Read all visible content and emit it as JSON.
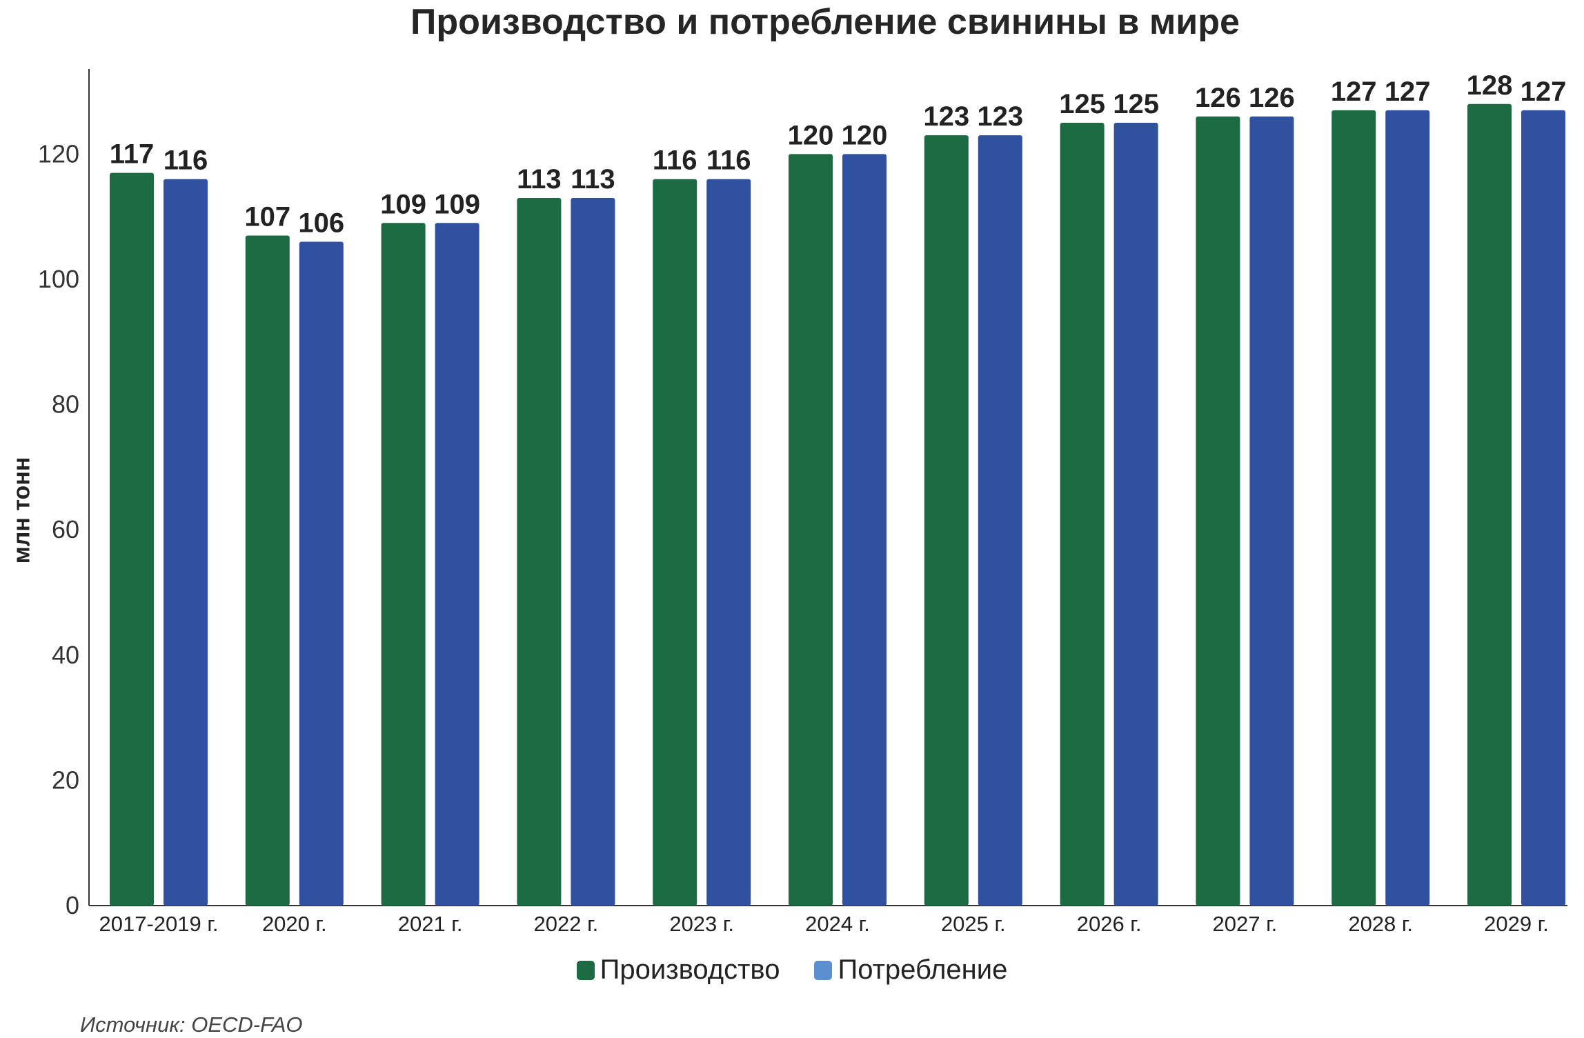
{
  "chart_data": {
    "type": "bar",
    "title": "Производство и потребление свинины в мире",
    "ylabel": "млн тонн",
    "xlabel": "",
    "ylim": [
      0,
      130
    ],
    "yticks": [
      0,
      20,
      40,
      60,
      80,
      100,
      120
    ],
    "grid": false,
    "legend_position": "bottom",
    "categories": [
      "2017-2019 г.",
      "2020 г.",
      "2021 г.",
      "2022 г.",
      "2023 г.",
      "2024 г.",
      "2025 г.",
      "2026 г.",
      "2027 г.",
      "2028 г.",
      "2029 г."
    ],
    "series": [
      {
        "name": "Производство",
        "color": "#1c6b42",
        "legend_color": "#1c6b42",
        "values": [
          117,
          107,
          109,
          113,
          116,
          120,
          123,
          125,
          126,
          127,
          128
        ]
      },
      {
        "name": "Потребление",
        "color": "#3050a0",
        "legend_color": "#5b8fd0",
        "values": [
          116,
          106,
          109,
          113,
          116,
          120,
          123,
          125,
          126,
          127,
          127
        ]
      }
    ]
  },
  "source": "Источник: OECD-FAO"
}
